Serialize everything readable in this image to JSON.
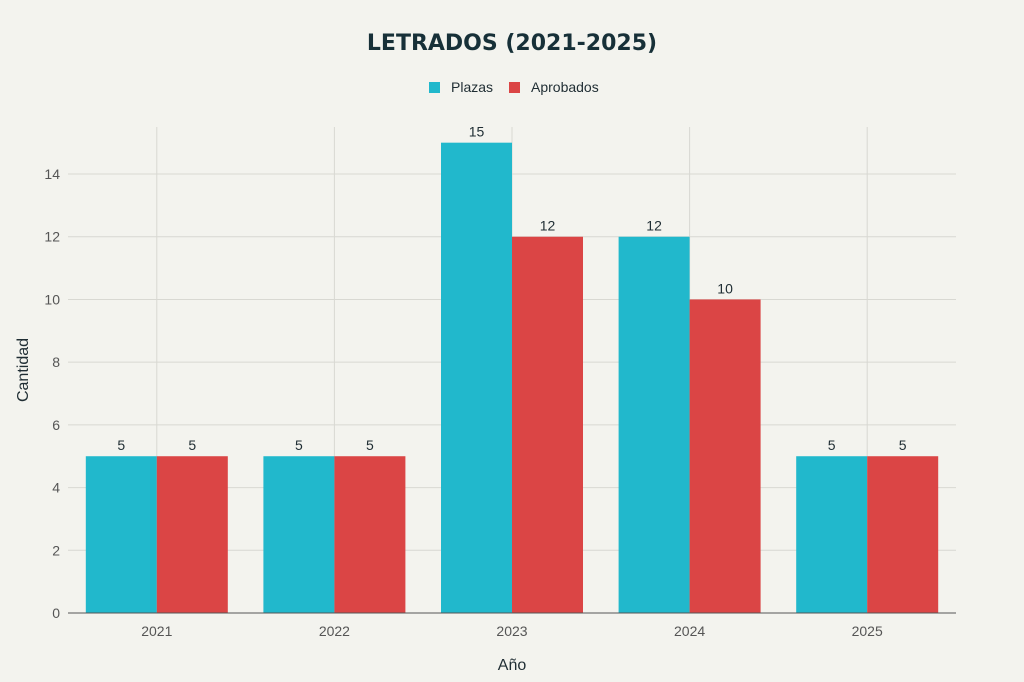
{
  "chart_data": {
    "type": "bar",
    "title": "LETRADOS (2021-2025)",
    "xlabel": "Año",
    "ylabel": "Cantidad",
    "categories": [
      "2021",
      "2022",
      "2023",
      "2024",
      "2025"
    ],
    "series": [
      {
        "name": "Plazas",
        "color": "#21b8cc",
        "values": [
          5,
          5,
          15,
          12,
          5
        ]
      },
      {
        "name": "Aprobados",
        "color": "#db4545",
        "values": [
          5,
          5,
          12,
          10,
          5
        ]
      }
    ],
    "ylim": [
      0,
      15.5
    ],
    "yticks": [
      0,
      2,
      4,
      6,
      8,
      10,
      12,
      14
    ],
    "grid": true,
    "legend_position": "top-center"
  }
}
